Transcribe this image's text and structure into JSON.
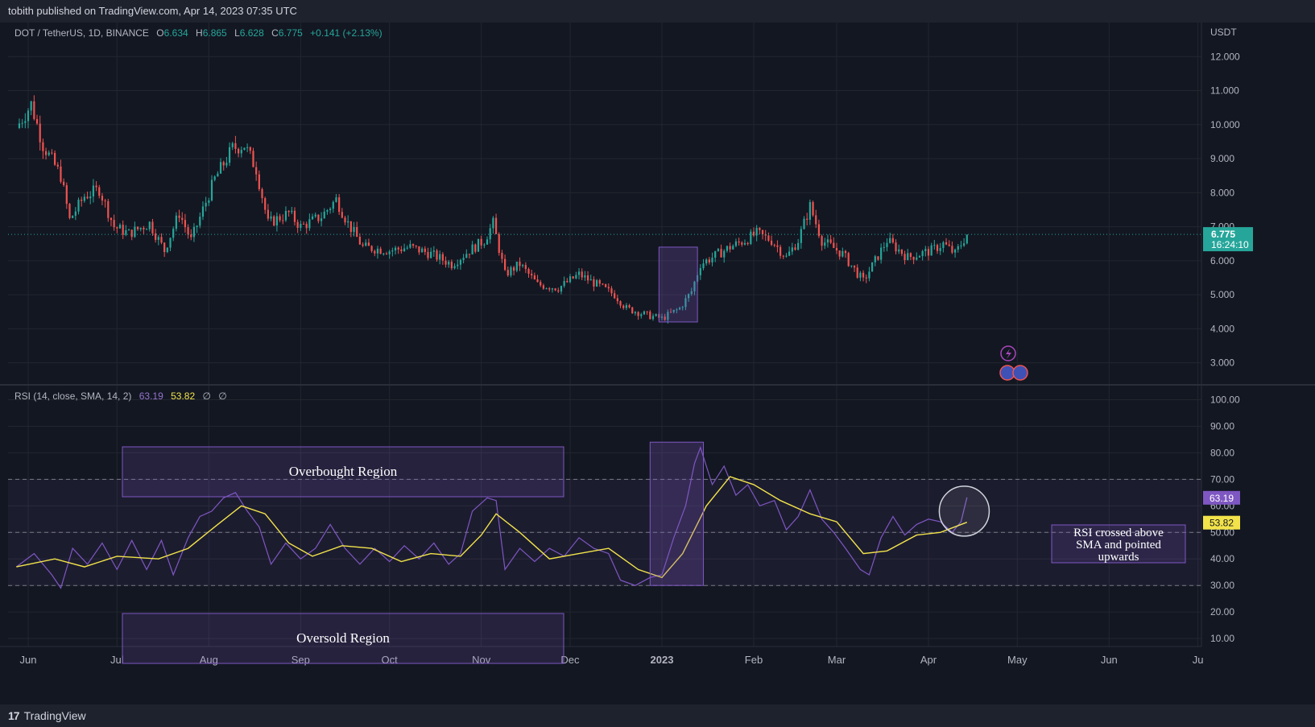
{
  "header": {
    "published": "tobith published on TradingView.com, Apr 14, 2023 07:35 UTC"
  },
  "footer": {
    "brand": "TradingView",
    "logo_glyph": "17"
  },
  "main_legend": {
    "symbol": "DOT / TetherUS, 1D, BINANCE",
    "o_label": "O",
    "o": "6.634",
    "h_label": "H",
    "h": "6.865",
    "l_label": "L",
    "l": "6.628",
    "c_label": "C",
    "c": "6.775",
    "change": "+0.141 (+2.13%)"
  },
  "rsi_legend": {
    "name": "RSI (14, close, SMA, 14, 2)",
    "rsi": "63.19",
    "sma": "53.82",
    "n1": "∅",
    "n2": "∅"
  },
  "colors": {
    "bg": "#131722",
    "up": "#26a69a",
    "down": "#ef5350",
    "rsi": "#7e57c2",
    "sma": "#f2e34a",
    "grid": "#22262f"
  },
  "chart_data": [
    {
      "type": "candlestick",
      "title": "DOT / TetherUS, 1D, BINANCE",
      "axis_unit": "USDT",
      "ylim": [
        2.4,
        13.0
      ],
      "y_ticks": [
        "12.000",
        "11.000",
        "10.000",
        "9.000",
        "8.000",
        "7.000",
        "6.000",
        "5.000",
        "4.000",
        "3.000"
      ],
      "x_ticks": [
        "Jun",
        "Jul",
        "Aug",
        "Sep",
        "Oct",
        "Nov",
        "Dec",
        "2023",
        "Feb",
        "Mar",
        "Apr",
        "May",
        "Jun",
        "Ju"
      ],
      "last_price": "6.775",
      "countdown": "16:24:10",
      "close_path": [
        {
          "x": "May 28",
          "close": 9.9
        },
        {
          "x": "Jun 2",
          "close": 10.6
        },
        {
          "x": "Jun 6",
          "close": 9.4
        },
        {
          "x": "Jun 12",
          "close": 8.5
        },
        {
          "x": "Jun 15",
          "close": 7.2
        },
        {
          "x": "Jun 20",
          "close": 7.9
        },
        {
          "x": "Jun 25",
          "close": 8.1
        },
        {
          "x": "Jun 30",
          "close": 7.0
        },
        {
          "x": "Jul 5",
          "close": 6.8
        },
        {
          "x": "Jul 12",
          "close": 7.1
        },
        {
          "x": "Jul 17",
          "close": 6.3
        },
        {
          "x": "Jul 22",
          "close": 7.4
        },
        {
          "x": "Jul 26",
          "close": 6.6
        },
        {
          "x": "Aug 3",
          "close": 8.4
        },
        {
          "x": "Aug 9",
          "close": 9.3
        },
        {
          "x": "Aug 13",
          "close": 9.4
        },
        {
          "x": "Aug 17",
          "close": 8.7
        },
        {
          "x": "Aug 21",
          "close": 7.1
        },
        {
          "x": "Aug 28",
          "close": 7.4
        },
        {
          "x": "Sep 1",
          "close": 7.0
        },
        {
          "x": "Sep 8",
          "close": 7.3
        },
        {
          "x": "Sep 13",
          "close": 7.8
        },
        {
          "x": "Sep 17",
          "close": 7.1
        },
        {
          "x": "Sep 22",
          "close": 6.4
        },
        {
          "x": "Oct 1",
          "close": 6.3
        },
        {
          "x": "Oct 8",
          "close": 6.4
        },
        {
          "x": "Oct 15",
          "close": 6.2
        },
        {
          "x": "Oct 22",
          "close": 5.9
        },
        {
          "x": "Oct 28",
          "close": 6.3
        },
        {
          "x": "Nov 2",
          "close": 6.6
        },
        {
          "x": "Nov 5",
          "close": 7.1
        },
        {
          "x": "Nov 9",
          "close": 5.6
        },
        {
          "x": "Nov 14",
          "close": 5.9
        },
        {
          "x": "Nov 20",
          "close": 5.3
        },
        {
          "x": "Nov 27",
          "close": 5.2
        },
        {
          "x": "Dec 4",
          "close": 5.6
        },
        {
          "x": "Dec 10",
          "close": 5.3
        },
        {
          "x": "Dec 16",
          "close": 5.0
        },
        {
          "x": "Dec 20",
          "close": 4.6
        },
        {
          "x": "Dec 27",
          "close": 4.4
        },
        {
          "x": "Jan 1",
          "close": 4.3
        },
        {
          "x": "Jan 7",
          "close": 4.6
        },
        {
          "x": "Jan 11",
          "close": 5.1
        },
        {
          "x": "Jan 14",
          "close": 5.9
        },
        {
          "x": "Jan 18",
          "close": 6.1
        },
        {
          "x": "Jan 24",
          "close": 6.4
        },
        {
          "x": "Jan 29",
          "close": 6.6
        },
        {
          "x": "Feb 2",
          "close": 6.8
        },
        {
          "x": "Feb 7",
          "close": 6.6
        },
        {
          "x": "Feb 12",
          "close": 6.1
        },
        {
          "x": "Feb 16",
          "close": 6.6
        },
        {
          "x": "Feb 20",
          "close": 7.6
        },
        {
          "x": "Feb 24",
          "close": 6.6
        },
        {
          "x": "Mar 3",
          "close": 6.2
        },
        {
          "x": "Mar 10",
          "close": 5.4
        },
        {
          "x": "Mar 14",
          "close": 6.0
        },
        {
          "x": "Mar 18",
          "close": 6.6
        },
        {
          "x": "Mar 25",
          "close": 6.1
        },
        {
          "x": "Apr 2",
          "close": 6.3
        },
        {
          "x": "Apr 6",
          "close": 6.5
        },
        {
          "x": "Apr 10",
          "close": 6.2
        },
        {
          "x": "Apr 14",
          "close": 6.775
        }
      ],
      "annotations": [
        {
          "type": "rectangle",
          "from": "Dec 31",
          "to": "Jan 13",
          "low": 4.2,
          "high": 6.4
        }
      ]
    },
    {
      "type": "line",
      "title": "RSI (14, close, SMA, 14, 2)",
      "ylim": [
        7,
        105
      ],
      "y_ticks": [
        "100.00",
        "90.00",
        "80.00",
        "70.00",
        "60.00",
        "50.00",
        "40.00",
        "30.00",
        "20.00",
        "10.00"
      ],
      "band_levels": [
        70,
        50,
        30
      ],
      "series": [
        {
          "name": "RSI",
          "color": "#7e57c2",
          "last": "63.19",
          "points": [
            {
              "x": "May 28",
              "y": 37
            },
            {
              "x": "Jun 3",
              "y": 42
            },
            {
              "x": "Jun 9",
              "y": 34
            },
            {
              "x": "Jun 12",
              "y": 29
            },
            {
              "x": "Jun 16",
              "y": 44
            },
            {
              "x": "Jun 21",
              "y": 38
            },
            {
              "x": "Jun 26",
              "y": 46
            },
            {
              "x": "Jul 1",
              "y": 36
            },
            {
              "x": "Jul 6",
              "y": 47
            },
            {
              "x": "Jul 11",
              "y": 36
            },
            {
              "x": "Jul 16",
              "y": 47
            },
            {
              "x": "Jul 20",
              "y": 34
            },
            {
              "x": "Jul 25",
              "y": 48
            },
            {
              "x": "Jul 29",
              "y": 56
            },
            {
              "x": "Aug 2",
              "y": 58
            },
            {
              "x": "Aug 6",
              "y": 63
            },
            {
              "x": "Aug 10",
              "y": 65
            },
            {
              "x": "Aug 14",
              "y": 58
            },
            {
              "x": "Aug 18",
              "y": 52
            },
            {
              "x": "Aug 22",
              "y": 38
            },
            {
              "x": "Aug 27",
              "y": 46
            },
            {
              "x": "Sep 1",
              "y": 40
            },
            {
              "x": "Sep 6",
              "y": 44
            },
            {
              "x": "Sep 11",
              "y": 53
            },
            {
              "x": "Sep 16",
              "y": 44
            },
            {
              "x": "Sep 21",
              "y": 38
            },
            {
              "x": "Sep 26",
              "y": 44
            },
            {
              "x": "Oct 1",
              "y": 39
            },
            {
              "x": "Oct 6",
              "y": 45
            },
            {
              "x": "Oct 11",
              "y": 40
            },
            {
              "x": "Oct 16",
              "y": 46
            },
            {
              "x": "Oct 21",
              "y": 38
            },
            {
              "x": "Oct 25",
              "y": 42
            },
            {
              "x": "Oct 29",
              "y": 58
            },
            {
              "x": "Nov 3",
              "y": 63
            },
            {
              "x": "Nov 6",
              "y": 62
            },
            {
              "x": "Nov 9",
              "y": 36
            },
            {
              "x": "Nov 14",
              "y": 44
            },
            {
              "x": "Nov 19",
              "y": 39
            },
            {
              "x": "Nov 24",
              "y": 44
            },
            {
              "x": "Nov 29",
              "y": 41
            },
            {
              "x": "Dec 4",
              "y": 48
            },
            {
              "x": "Dec 9",
              "y": 44
            },
            {
              "x": "Dec 14",
              "y": 42
            },
            {
              "x": "Dec 18",
              "y": 32
            },
            {
              "x": "Dec 23",
              "y": 30
            },
            {
              "x": "Dec 28",
              "y": 33
            },
            {
              "x": "Jan 1",
              "y": 34
            },
            {
              "x": "Jan 5",
              "y": 48
            },
            {
              "x": "Jan 9",
              "y": 60
            },
            {
              "x": "Jan 12",
              "y": 76
            },
            {
              "x": "Jan 14",
              "y": 82
            },
            {
              "x": "Jan 18",
              "y": 68
            },
            {
              "x": "Jan 22",
              "y": 75
            },
            {
              "x": "Jan 26",
              "y": 64
            },
            {
              "x": "Jan 30",
              "y": 68
            },
            {
              "x": "Feb 3",
              "y": 60
            },
            {
              "x": "Feb 8",
              "y": 62
            },
            {
              "x": "Feb 12",
              "y": 51
            },
            {
              "x": "Feb 16",
              "y": 56
            },
            {
              "x": "Feb 20",
              "y": 66
            },
            {
              "x": "Feb 24",
              "y": 55
            },
            {
              "x": "Feb 28",
              "y": 50
            },
            {
              "x": "Mar 4",
              "y": 44
            },
            {
              "x": "Mar 9",
              "y": 36
            },
            {
              "x": "Mar 12",
              "y": 34
            },
            {
              "x": "Mar 16",
              "y": 48
            },
            {
              "x": "Mar 20",
              "y": 56
            },
            {
              "x": "Mar 24",
              "y": 49
            },
            {
              "x": "Mar 28",
              "y": 53
            },
            {
              "x": "Apr 1",
              "y": 55
            },
            {
              "x": "Apr 5",
              "y": 54
            },
            {
              "x": "Apr 9",
              "y": 50
            },
            {
              "x": "Apr 12",
              "y": 54
            },
            {
              "x": "Apr 14",
              "y": 63.19
            }
          ]
        },
        {
          "name": "SMA",
          "color": "#f2e34a",
          "last": "53.82",
          "points": [
            {
              "x": "May 28",
              "y": 37
            },
            {
              "x": "Jun 10",
              "y": 40
            },
            {
              "x": "Jun 20",
              "y": 37
            },
            {
              "x": "Jul 1",
              "y": 41
            },
            {
              "x": "Jul 15",
              "y": 40
            },
            {
              "x": "Jul 25",
              "y": 44
            },
            {
              "x": "Aug 4",
              "y": 53
            },
            {
              "x": "Aug 12",
              "y": 60
            },
            {
              "x": "Aug 20",
              "y": 57
            },
            {
              "x": "Aug 28",
              "y": 46
            },
            {
              "x": "Sep 5",
              "y": 41
            },
            {
              "x": "Sep 15",
              "y": 45
            },
            {
              "x": "Sep 25",
              "y": 44
            },
            {
              "x": "Oct 5",
              "y": 39
            },
            {
              "x": "Oct 15",
              "y": 42
            },
            {
              "x": "Oct 25",
              "y": 41
            },
            {
              "x": "Nov 1",
              "y": 49
            },
            {
              "x": "Nov 6",
              "y": 57
            },
            {
              "x": "Nov 14",
              "y": 50
            },
            {
              "x": "Nov 24",
              "y": 40
            },
            {
              "x": "Dec 4",
              "y": 42
            },
            {
              "x": "Dec 14",
              "y": 44
            },
            {
              "x": "Dec 24",
              "y": 36
            },
            {
              "x": "Jan 1",
              "y": 33
            },
            {
              "x": "Jan 8",
              "y": 42
            },
            {
              "x": "Jan 16",
              "y": 60
            },
            {
              "x": "Jan 24",
              "y": 71
            },
            {
              "x": "Feb 1",
              "y": 68
            },
            {
              "x": "Feb 10",
              "y": 62
            },
            {
              "x": "Feb 20",
              "y": 57
            },
            {
              "x": "Mar 1",
              "y": 54
            },
            {
              "x": "Mar 10",
              "y": 42
            },
            {
              "x": "Mar 18",
              "y": 43
            },
            {
              "x": "Mar 28",
              "y": 49
            },
            {
              "x": "Apr 5",
              "y": 50
            },
            {
              "x": "Apr 14",
              "y": 53.82
            }
          ]
        }
      ],
      "annotations": [
        {
          "type": "label_box",
          "text": "Overbought Region"
        },
        {
          "type": "label_box",
          "text": "Oversold Region"
        },
        {
          "type": "rectangle",
          "from": "Dec 28",
          "to": "Jan 15",
          "low": 30,
          "high": 84
        },
        {
          "type": "circle",
          "at": "Apr 12",
          "y": 58
        },
        {
          "type": "label_box",
          "text": "RSI crossed above SMA and pointed upwards"
        }
      ]
    }
  ]
}
